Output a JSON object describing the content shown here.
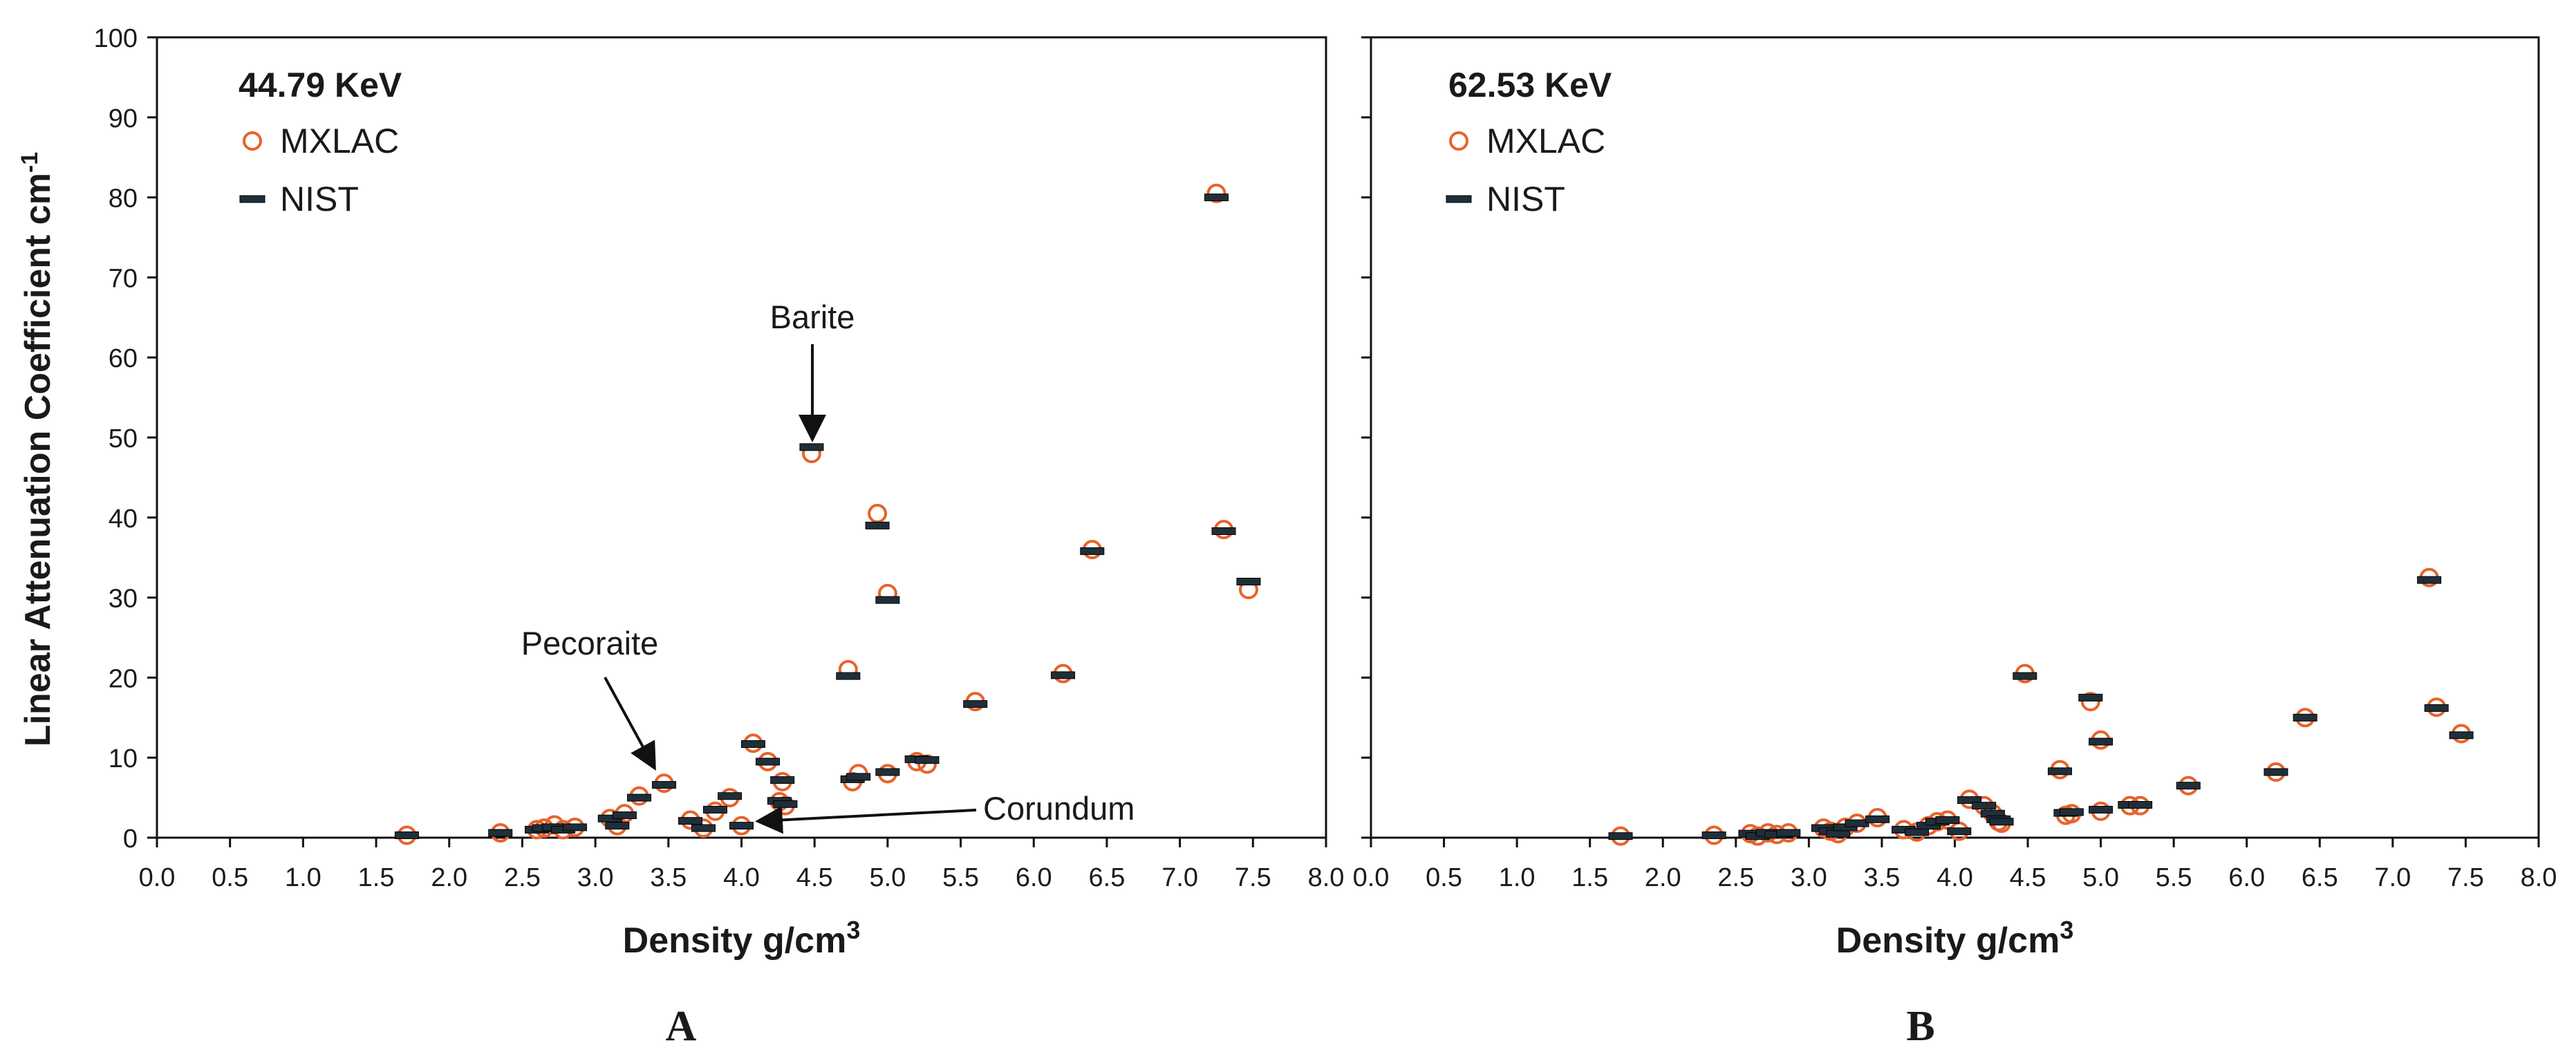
{
  "figure": {
    "y_axis_label": "Linear Attenuation Coefficient cm",
    "y_axis_label_sup": "-1",
    "marker_colors": {
      "mxlac": "#E8622A",
      "nist": "#1f2f3a"
    }
  },
  "chart_data": [
    {
      "type": "scatter",
      "panel_label": "A",
      "title": "44.79 KeV",
      "xlabel": "Density g/cm",
      "xlabel_sup": "3",
      "xlim": [
        0,
        8
      ],
      "ylim": [
        0,
        100
      ],
      "x_ticks": [
        "0.0",
        "0.5",
        "1.0",
        "1.5",
        "2.0",
        "2.5",
        "3.0",
        "3.5",
        "4.0",
        "4.5",
        "5.0",
        "5.5",
        "6.0",
        "6.5",
        "7.0",
        "7.5",
        "8.0"
      ],
      "y_ticks": [
        "0",
        "10",
        "20",
        "30",
        "40",
        "50",
        "60",
        "70",
        "80",
        "90",
        "100"
      ],
      "legend": [
        "MXLAC",
        "NIST"
      ],
      "annotations": [
        {
          "text": "Barite",
          "x": 4.5,
          "y": 48.5
        },
        {
          "text": "Pecoraite",
          "x": 3.4,
          "y": 8.5
        },
        {
          "text": "Corundum",
          "x": 4.0,
          "y": 1.6
        }
      ],
      "series": [
        {
          "name": "MXLAC",
          "points": [
            [
              1.71,
              0.3
            ],
            [
              2.35,
              0.6
            ],
            [
              2.6,
              1.0
            ],
            [
              2.65,
              1.2
            ],
            [
              2.72,
              1.6
            ],
            [
              2.78,
              1.0
            ],
            [
              2.86,
              1.3
            ],
            [
              3.1,
              2.4
            ],
            [
              3.15,
              1.5
            ],
            [
              3.2,
              3.0
            ],
            [
              3.3,
              5.2
            ],
            [
              3.47,
              6.8
            ],
            [
              3.65,
              2.2
            ],
            [
              3.74,
              1.2
            ],
            [
              3.82,
              3.3
            ],
            [
              3.92,
              5.0
            ],
            [
              4.0,
              1.5
            ],
            [
              4.08,
              11.8
            ],
            [
              4.18,
              9.5
            ],
            [
              4.26,
              4.5
            ],
            [
              4.28,
              7.0
            ],
            [
              4.3,
              4.0
            ],
            [
              4.48,
              48.0
            ],
            [
              4.73,
              21.0
            ],
            [
              4.76,
              7.0
            ],
            [
              4.8,
              8.0
            ],
            [
              4.93,
              40.5
            ],
            [
              5.0,
              30.5
            ],
            [
              5.0,
              8.0
            ],
            [
              5.2,
              9.5
            ],
            [
              5.27,
              9.2
            ],
            [
              5.6,
              17.0
            ],
            [
              6.2,
              20.5
            ],
            [
              6.4,
              36.0
            ],
            [
              7.25,
              80.5
            ],
            [
              7.3,
              38.5
            ],
            [
              7.47,
              31.0
            ]
          ]
        },
        {
          "name": "NIST",
          "points": [
            [
              1.71,
              0.3
            ],
            [
              2.35,
              0.6
            ],
            [
              2.6,
              1.0
            ],
            [
              2.65,
              1.2
            ],
            [
              2.72,
              1.3
            ],
            [
              2.78,
              1.0
            ],
            [
              2.86,
              1.3
            ],
            [
              3.1,
              2.4
            ],
            [
              3.15,
              1.5
            ],
            [
              3.2,
              2.8
            ],
            [
              3.3,
              5.0
            ],
            [
              3.47,
              6.6
            ],
            [
              3.65,
              2.1
            ],
            [
              3.74,
              1.2
            ],
            [
              3.82,
              3.5
            ],
            [
              3.92,
              5.2
            ],
            [
              4.0,
              1.5
            ],
            [
              4.08,
              11.7
            ],
            [
              4.18,
              9.5
            ],
            [
              4.26,
              4.6
            ],
            [
              4.28,
              7.2
            ],
            [
              4.3,
              4.2
            ],
            [
              4.48,
              48.8
            ],
            [
              4.73,
              20.2
            ],
            [
              4.76,
              7.3
            ],
            [
              4.8,
              7.6
            ],
            [
              4.93,
              39.0
            ],
            [
              5.0,
              29.7
            ],
            [
              5.0,
              8.2
            ],
            [
              5.2,
              9.8
            ],
            [
              5.27,
              9.7
            ],
            [
              5.6,
              16.7
            ],
            [
              6.2,
              20.3
            ],
            [
              6.4,
              35.8
            ],
            [
              7.25,
              80.0
            ],
            [
              7.3,
              38.3
            ],
            [
              7.47,
              32.0
            ]
          ]
        }
      ]
    },
    {
      "type": "scatter",
      "panel_label": "B",
      "title": "62.53 KeV",
      "xlabel": "Density g/cm",
      "xlabel_sup": "3",
      "xlim": [
        0,
        8
      ],
      "ylim": [
        0,
        100
      ],
      "x_ticks": [
        "0.0",
        "0.5",
        "1.0",
        "1.5",
        "2.0",
        "2.5",
        "3.0",
        "3.5",
        "4.0",
        "4.5",
        "5.0",
        "5.5",
        "6.0",
        "6.5",
        "7.0",
        "7.5",
        "8.0"
      ],
      "y_ticks": [],
      "legend": [
        "MXLAC",
        "NIST"
      ],
      "annotations": [],
      "series": [
        {
          "name": "MXLAC",
          "points": [
            [
              1.71,
              0.2
            ],
            [
              2.35,
              0.3
            ],
            [
              2.6,
              0.5
            ],
            [
              2.65,
              0.2
            ],
            [
              2.72,
              0.6
            ],
            [
              2.78,
              0.4
            ],
            [
              2.86,
              0.6
            ],
            [
              3.1,
              1.2
            ],
            [
              3.15,
              0.8
            ],
            [
              3.2,
              0.5
            ],
            [
              3.25,
              1.3
            ],
            [
              3.33,
              1.8
            ],
            [
              3.47,
              2.5
            ],
            [
              3.65,
              1.0
            ],
            [
              3.74,
              0.7
            ],
            [
              3.82,
              1.5
            ],
            [
              3.88,
              2.0
            ],
            [
              3.95,
              2.2
            ],
            [
              4.03,
              0.8
            ],
            [
              4.1,
              4.8
            ],
            [
              4.2,
              4.0
            ],
            [
              4.26,
              3.0
            ],
            [
              4.3,
              2.0
            ],
            [
              4.32,
              1.8
            ],
            [
              4.48,
              20.5
            ],
            [
              4.72,
              8.5
            ],
            [
              4.76,
              2.8
            ],
            [
              4.8,
              3.0
            ],
            [
              4.93,
              17.0
            ],
            [
              5.0,
              12.2
            ],
            [
              5.0,
              3.3
            ],
            [
              5.2,
              4.0
            ],
            [
              5.27,
              4.0
            ],
            [
              5.6,
              6.5
            ],
            [
              6.2,
              8.2
            ],
            [
              6.4,
              15.0
            ],
            [
              7.25,
              32.5
            ],
            [
              7.3,
              16.3
            ],
            [
              7.47,
              13.0
            ]
          ]
        },
        {
          "name": "NIST",
          "points": [
            [
              1.71,
              0.2
            ],
            [
              2.35,
              0.3
            ],
            [
              2.6,
              0.5
            ],
            [
              2.65,
              0.2
            ],
            [
              2.72,
              0.6
            ],
            [
              2.78,
              0.4
            ],
            [
              2.86,
              0.6
            ],
            [
              3.1,
              1.2
            ],
            [
              3.15,
              0.8
            ],
            [
              3.2,
              0.5
            ],
            [
              3.25,
              1.3
            ],
            [
              3.33,
              1.8
            ],
            [
              3.47,
              2.3
            ],
            [
              3.65,
              1.0
            ],
            [
              3.74,
              0.7
            ],
            [
              3.82,
              1.5
            ],
            [
              3.88,
              2.0
            ],
            [
              3.95,
              2.2
            ],
            [
              4.03,
              0.8
            ],
            [
              4.1,
              4.7
            ],
            [
              4.2,
              4.0
            ],
            [
              4.26,
              3.0
            ],
            [
              4.3,
              2.3
            ],
            [
              4.32,
              2.0
            ],
            [
              4.48,
              20.2
            ],
            [
              4.72,
              8.3
            ],
            [
              4.76,
              3.1
            ],
            [
              4.8,
              3.2
            ],
            [
              4.93,
              17.5
            ],
            [
              5.0,
              12.0
            ],
            [
              5.0,
              3.5
            ],
            [
              5.2,
              4.1
            ],
            [
              5.27,
              4.1
            ],
            [
              5.6,
              6.5
            ],
            [
              6.2,
              8.2
            ],
            [
              6.4,
              15.0
            ],
            [
              7.25,
              32.2
            ],
            [
              7.3,
              16.2
            ],
            [
              7.47,
              12.8
            ]
          ]
        }
      ]
    }
  ]
}
